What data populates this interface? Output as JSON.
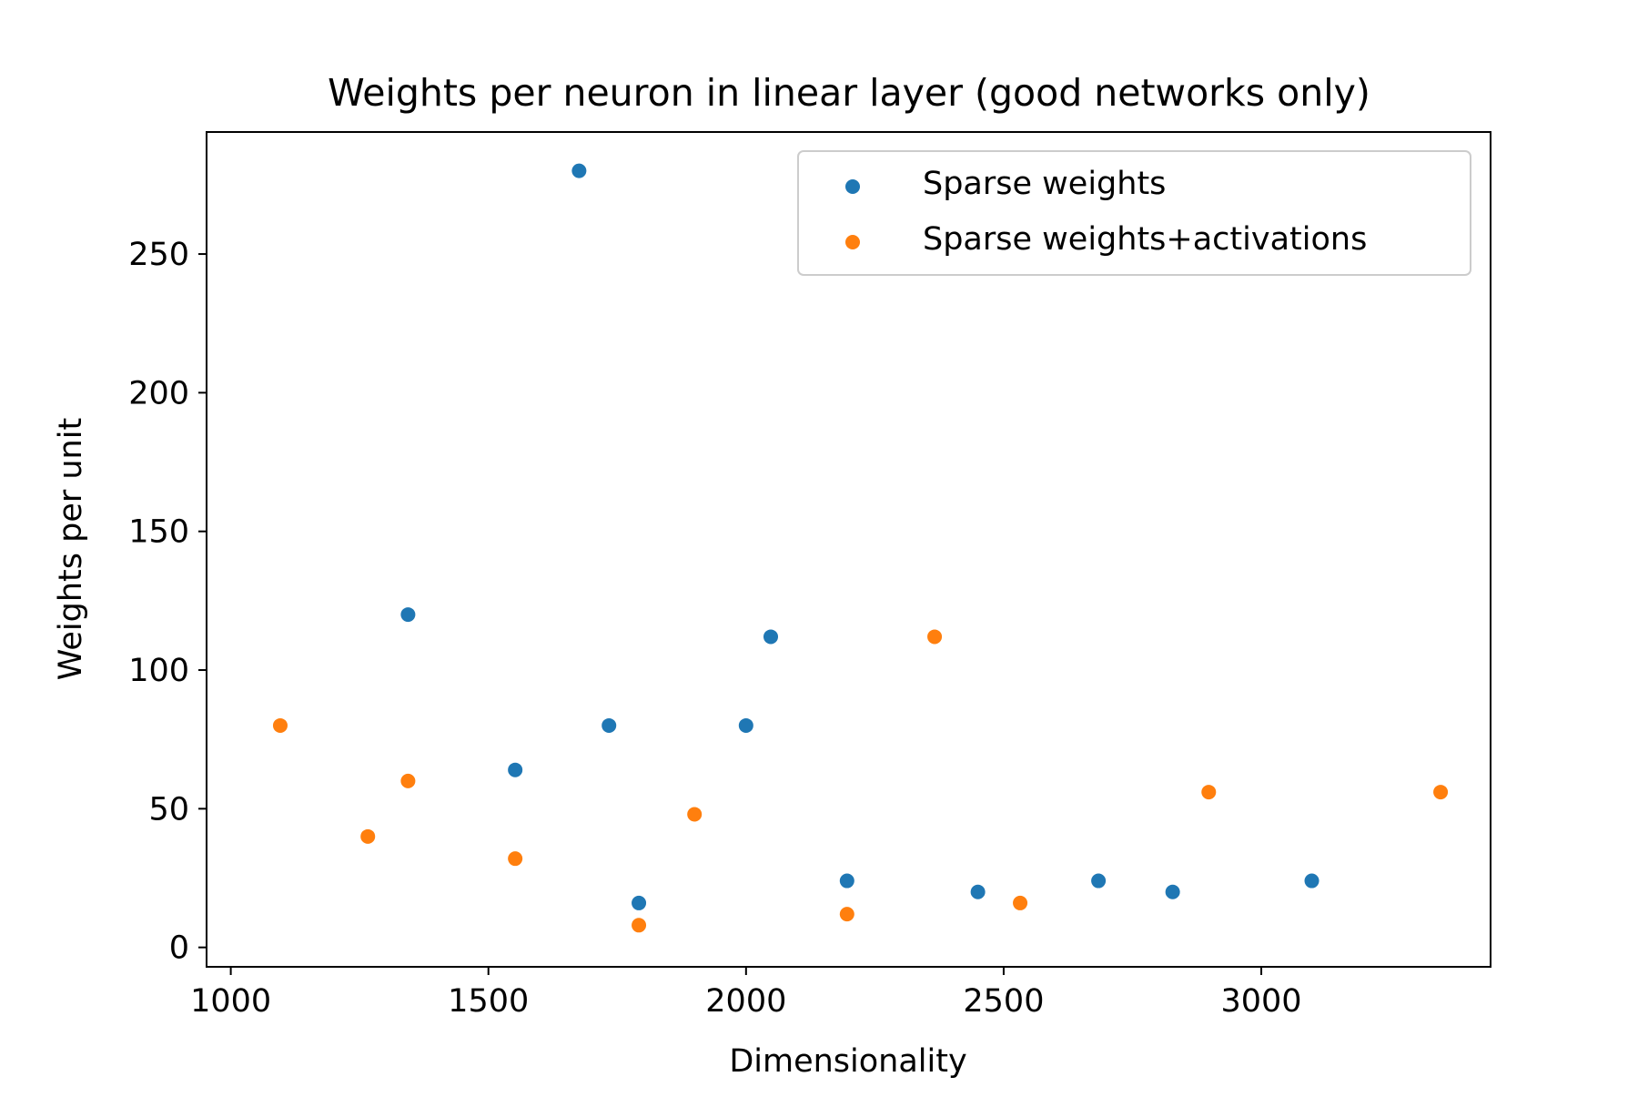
{
  "chart_data": {
    "type": "scatter",
    "title": "Weights per neuron in linear layer (good networks only)",
    "xlabel": "Dimensionality",
    "ylabel": "Weights per unit",
    "xlim": [
      953,
      3445
    ],
    "ylim": [
      -7,
      294
    ],
    "xticks": [
      1000,
      1500,
      2000,
      2500,
      3000
    ],
    "yticks": [
      0,
      50,
      100,
      150,
      200,
      250
    ],
    "grid": false,
    "legend_position": "top-right",
    "series": [
      {
        "name": "Sparse weights",
        "color": "#1f77b4",
        "points": [
          {
            "x": 1344,
            "y": 120
          },
          {
            "x": 1552,
            "y": 64
          },
          {
            "x": 1676,
            "y": 280
          },
          {
            "x": 1734,
            "y": 80
          },
          {
            "x": 1792,
            "y": 16
          },
          {
            "x": 2000,
            "y": 80
          },
          {
            "x": 2048,
            "y": 112
          },
          {
            "x": 2196,
            "y": 24
          },
          {
            "x": 2450,
            "y": 20
          },
          {
            "x": 2684,
            "y": 24
          },
          {
            "x": 2828,
            "y": 20
          },
          {
            "x": 3098,
            "y": 24
          }
        ]
      },
      {
        "name": "Sparse weights+activations",
        "color": "#ff7f0e",
        "points": [
          {
            "x": 1096,
            "y": 80
          },
          {
            "x": 1266,
            "y": 40
          },
          {
            "x": 1344,
            "y": 60
          },
          {
            "x": 1552,
            "y": 32
          },
          {
            "x": 1792,
            "y": 8
          },
          {
            "x": 1900,
            "y": 48
          },
          {
            "x": 2196,
            "y": 12
          },
          {
            "x": 2366,
            "y": 112
          },
          {
            "x": 2532,
            "y": 16
          },
          {
            "x": 2898,
            "y": 56
          },
          {
            "x": 3348,
            "y": 56
          }
        ]
      }
    ]
  }
}
